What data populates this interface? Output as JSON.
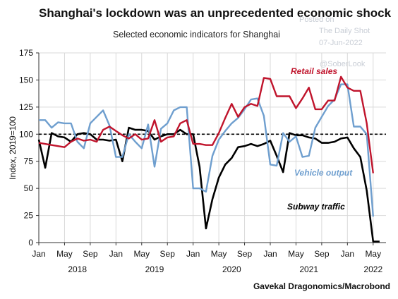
{
  "chart_data": {
    "type": "line",
    "title": "Shanghai's lockdown was an unprecedented economic shock",
    "subtitle": "Selected economic indicators for Shanghai",
    "ylabel": "Index, 2019=100",
    "xlabel": "",
    "ylim": [
      0,
      175
    ],
    "yticks": [
      0,
      25,
      50,
      75,
      100,
      125,
      150,
      175
    ],
    "xlim": [
      0,
      54
    ],
    "grid": true,
    "reference_line": 100,
    "month_ticks": [
      {
        "pos": 0,
        "label": "Jan"
      },
      {
        "pos": 4,
        "label": "May"
      },
      {
        "pos": 8,
        "label": "Sep"
      },
      {
        "pos": 12,
        "label": "Jan"
      },
      {
        "pos": 16,
        "label": "May"
      },
      {
        "pos": 20,
        "label": "Sep"
      },
      {
        "pos": 24,
        "label": "Jan"
      },
      {
        "pos": 28,
        "label": "May"
      },
      {
        "pos": 32,
        "label": "Sep"
      },
      {
        "pos": 36,
        "label": "Jan"
      },
      {
        "pos": 40,
        "label": "May"
      },
      {
        "pos": 44,
        "label": "Sep"
      },
      {
        "pos": 48,
        "label": "Jan"
      },
      {
        "pos": 52,
        "label": "May"
      }
    ],
    "year_labels": [
      {
        "pos": 6,
        "label": "2018"
      },
      {
        "pos": 18,
        "label": "2019"
      },
      {
        "pos": 30,
        "label": "2020"
      },
      {
        "pos": 42,
        "label": "2021"
      },
      {
        "pos": 52,
        "label": "2022"
      }
    ],
    "series": [
      {
        "name": "Retail sales",
        "color": "#c0142c",
        "points": [
          [
            0,
            92
          ],
          [
            1,
            91
          ],
          [
            2,
            90
          ],
          [
            3,
            89
          ],
          [
            4,
            88
          ],
          [
            5,
            93
          ],
          [
            6,
            96
          ],
          [
            7,
            94
          ],
          [
            8,
            95
          ],
          [
            9,
            93
          ],
          [
            10,
            104
          ],
          [
            11,
            107
          ],
          [
            12,
            103
          ],
          [
            13,
            99
          ],
          [
            14,
            96
          ],
          [
            15,
            100
          ],
          [
            16,
            95
          ],
          [
            17,
            96
          ],
          [
            18,
            113
          ],
          [
            19,
            93
          ],
          [
            20,
            97
          ],
          [
            21,
            98
          ],
          [
            22,
            110
          ],
          [
            23,
            113
          ],
          [
            24,
            91
          ],
          [
            25,
            91
          ],
          [
            26,
            90
          ],
          [
            27,
            90
          ],
          [
            28,
            101
          ],
          [
            29,
            115
          ],
          [
            30,
            128
          ],
          [
            31,
            116
          ],
          [
            32,
            125
          ],
          [
            33,
            128
          ],
          [
            34,
            126
          ],
          [
            35,
            152
          ],
          [
            36,
            151
          ],
          [
            37,
            135
          ],
          [
            38,
            135
          ],
          [
            39,
            135
          ],
          [
            40,
            124
          ],
          [
            41,
            133
          ],
          [
            42,
            143
          ],
          [
            43,
            123
          ],
          [
            44,
            123
          ],
          [
            45,
            131
          ],
          [
            46,
            131
          ],
          [
            47,
            153
          ],
          [
            48,
            143
          ],
          [
            49,
            140
          ],
          [
            50,
            140
          ],
          [
            51,
            110
          ],
          [
            52,
            64
          ]
        ]
      },
      {
        "name": "Vehicle output",
        "color": "#6f9fcf",
        "points": [
          [
            0,
            113
          ],
          [
            1,
            113
          ],
          [
            2,
            106
          ],
          [
            3,
            111
          ],
          [
            4,
            110
          ],
          [
            5,
            110
          ],
          [
            6,
            93
          ],
          [
            7,
            87
          ],
          [
            8,
            110
          ],
          [
            9,
            116
          ],
          [
            10,
            122
          ],
          [
            11,
            108
          ],
          [
            12,
            79
          ],
          [
            13,
            79
          ],
          [
            14,
            100
          ],
          [
            15,
            93
          ],
          [
            16,
            87
          ],
          [
            17,
            109
          ],
          [
            18,
            70
          ],
          [
            19,
            105
          ],
          [
            20,
            110
          ],
          [
            21,
            122
          ],
          [
            22,
            125
          ],
          [
            23,
            125
          ],
          [
            24,
            50
          ],
          [
            25,
            50
          ],
          [
            26,
            47
          ],
          [
            27,
            80
          ],
          [
            28,
            95
          ],
          [
            29,
            103
          ],
          [
            30,
            110
          ],
          [
            31,
            115
          ],
          [
            32,
            123
          ],
          [
            33,
            132
          ],
          [
            34,
            133
          ],
          [
            35,
            117
          ],
          [
            36,
            72
          ],
          [
            37,
            71
          ],
          [
            38,
            101
          ],
          [
            39,
            93
          ],
          [
            40,
            98
          ],
          [
            41,
            79
          ],
          [
            42,
            80
          ],
          [
            43,
            106
          ],
          [
            44,
            116
          ],
          [
            45,
            126
          ],
          [
            46,
            132
          ],
          [
            47,
            146
          ],
          [
            48,
            146
          ],
          [
            49,
            107
          ],
          [
            50,
            107
          ],
          [
            51,
            100
          ],
          [
            52,
            24
          ]
        ]
      },
      {
        "name": "Subway traffic",
        "color": "#000000",
        "points": [
          [
            0,
            95
          ],
          [
            1,
            69
          ],
          [
            2,
            101
          ],
          [
            3,
            98
          ],
          [
            4,
            97
          ],
          [
            5,
            93
          ],
          [
            6,
            100
          ],
          [
            7,
            101
          ],
          [
            8,
            100
          ],
          [
            9,
            95
          ],
          [
            10,
            95
          ],
          [
            11,
            94
          ],
          [
            12,
            95
          ],
          [
            13,
            75
          ],
          [
            14,
            106
          ],
          [
            15,
            104
          ],
          [
            16,
            104
          ],
          [
            17,
            103
          ],
          [
            18,
            95
          ],
          [
            19,
            98
          ],
          [
            20,
            100
          ],
          [
            21,
            100
          ],
          [
            22,
            104
          ],
          [
            23,
            100
          ],
          [
            24,
            100
          ],
          [
            25,
            70
          ],
          [
            26,
            13
          ],
          [
            27,
            40
          ],
          [
            28,
            60
          ],
          [
            29,
            72
          ],
          [
            30,
            78
          ],
          [
            31,
            88
          ],
          [
            32,
            89
          ],
          [
            33,
            91
          ],
          [
            34,
            89
          ],
          [
            35,
            91
          ],
          [
            36,
            94
          ],
          [
            37,
            80
          ],
          [
            38,
            65
          ],
          [
            39,
            101
          ],
          [
            40,
            99
          ],
          [
            41,
            99
          ],
          [
            42,
            97
          ],
          [
            43,
            96
          ],
          [
            44,
            92
          ],
          [
            45,
            92
          ],
          [
            46,
            93
          ],
          [
            47,
            96
          ],
          [
            48,
            97
          ],
          [
            49,
            87
          ],
          [
            50,
            79
          ],
          [
            51,
            48
          ],
          [
            52,
            1
          ],
          [
            53,
            1
          ]
        ]
      }
    ],
    "series_labels": [
      {
        "text": "Retail sales",
        "color": "#c0142c"
      },
      {
        "text": "Vehicle output",
        "color": "#6f9fcf"
      },
      {
        "text": "Subway traffic",
        "color": "#000000"
      }
    ],
    "watermark": [
      "Posted on",
      "The Daily Shot",
      "07-Jun-2022",
      "@SoberLook"
    ],
    "source": "Gavekal Dragonomics/Macrobond"
  }
}
